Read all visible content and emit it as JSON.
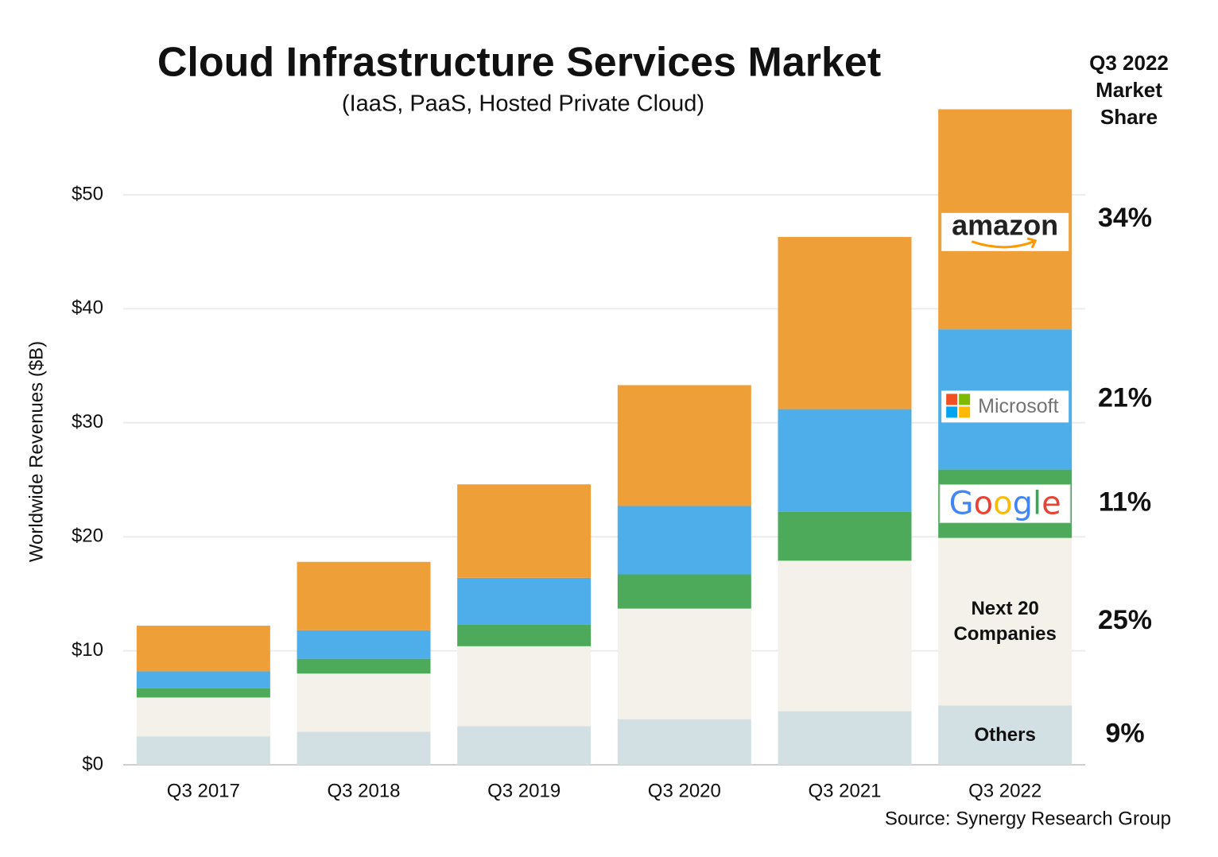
{
  "chart_data": {
    "type": "stacked_bar",
    "title": "Cloud Infrastructure Services Market",
    "subtitle": "(IaaS, PaaS, Hosted Private Cloud)",
    "y_label": "Worldwide Revenues ($B)",
    "source": "Source: Synergy Research Group",
    "share_title": "Q3 2022 Market Share",
    "categories": [
      "Q3 2017",
      "Q3 2018",
      "Q3 2019",
      "Q3 2020",
      "Q3 2021",
      "Q3 2022"
    ],
    "series": [
      {
        "name": "Others",
        "color": "#d3e0e3",
        "values": [
          2.5,
          2.9,
          3.4,
          4.0,
          4.7,
          5.2
        ],
        "share_label": "9%"
      },
      {
        "name": "Next 20 Companies",
        "color": "#f3f1ea",
        "values": [
          3.4,
          5.1,
          7.0,
          9.7,
          13.2,
          14.7
        ],
        "share_label": "25%"
      },
      {
        "name": "Google",
        "color": "#4caa5a",
        "values": [
          0.8,
          1.3,
          1.9,
          3.0,
          4.3,
          6.0
        ],
        "share_label": "11%"
      },
      {
        "name": "Microsoft",
        "color": "#4daee9",
        "values": [
          1.5,
          2.5,
          4.1,
          6.0,
          9.0,
          12.3
        ],
        "share_label": "21%"
      },
      {
        "name": "amazon",
        "color": "#ef9f38",
        "values": [
          4.0,
          6.0,
          8.2,
          10.6,
          15.1,
          19.3
        ],
        "share_label": "34%"
      }
    ],
    "ylim": [
      0,
      60
    ],
    "yticks": [
      {
        "value": 0,
        "label": "$0"
      },
      {
        "value": 10,
        "label": "$10"
      },
      {
        "value": 20,
        "label": "$20"
      },
      {
        "value": 30,
        "label": "$30"
      },
      {
        "value": 40,
        "label": "$40"
      },
      {
        "value": 50,
        "label": "$50"
      }
    ],
    "grid": true
  }
}
